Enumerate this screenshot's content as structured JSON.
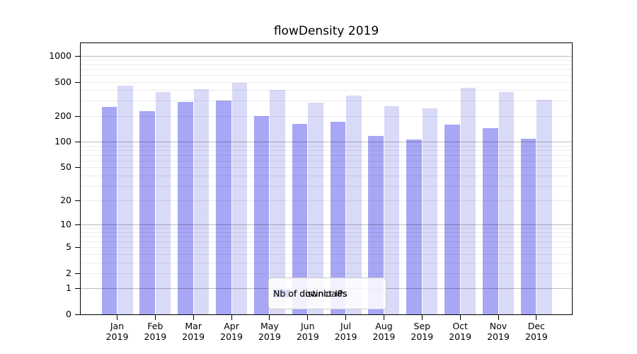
{
  "title": "flowDensity 2019",
  "chart_data": {
    "type": "bar",
    "title": "flowDensity 2019",
    "categories": [
      "Jan",
      "Feb",
      "Mar",
      "Apr",
      "May",
      "Jun",
      "Jul",
      "Aug",
      "Sep",
      "Oct",
      "Nov",
      "Dec"
    ],
    "x_year_label": "2019",
    "series": [
      {
        "name": "Nb of distinct IPs",
        "color": "#a7a7f5",
        "values": [
          255,
          229,
          292,
          303,
          200,
          162,
          172,
          118,
          106,
          159,
          144,
          109
        ]
      },
      {
        "name": "Nb of downloads",
        "color": "#d9d9f8",
        "values": [
          454,
          383,
          408,
          487,
          402,
          286,
          346,
          260,
          247,
          430,
          381,
          309
        ]
      }
    ],
    "y_axis": {
      "scale": "symlog",
      "ticks": [
        0,
        1,
        2,
        5,
        10,
        20,
        50,
        100,
        200,
        500,
        1000
      ],
      "major_gridlines": [
        1,
        10,
        100,
        1000
      ],
      "range": [
        0,
        1000
      ]
    },
    "x_axis": {
      "label_format": "month over year"
    },
    "legend": {
      "position": "bottom-center",
      "entries": [
        "Nb of distinct IPs",
        "Nb of downloads"
      ]
    },
    "grid": "log minor + major horizontal gridlines",
    "colors": {
      "distinct_ips": "#a7a7f5",
      "downloads": "#d9d9f8",
      "grid_minor": "#ececec",
      "grid_major": "#bdbdbd",
      "spine": "#000000",
      "legend_border": "#cccccc"
    }
  }
}
